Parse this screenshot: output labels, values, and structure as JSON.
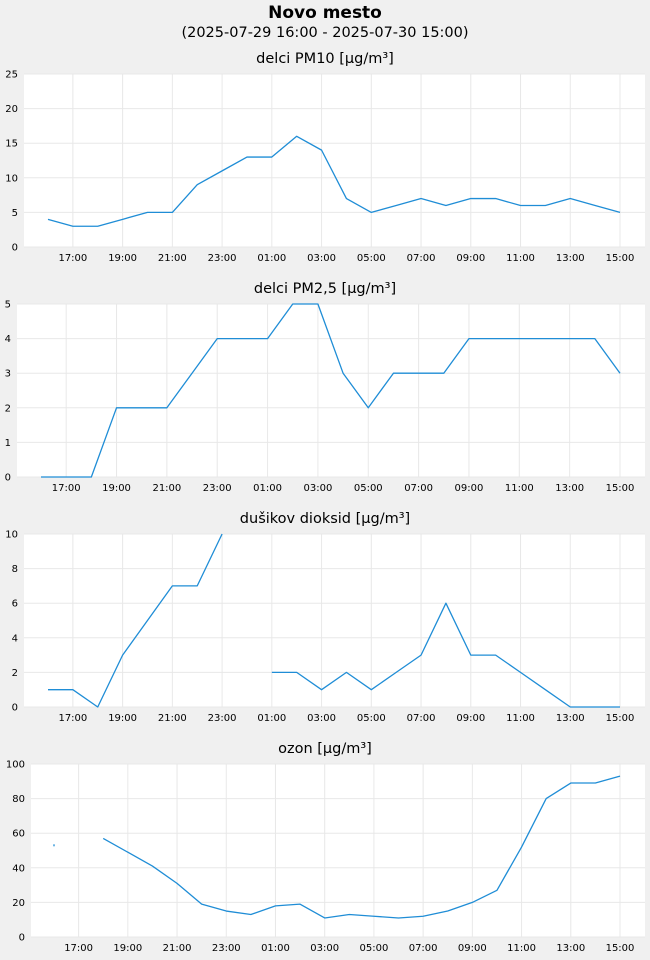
{
  "header": {
    "title": "Novo mesto",
    "period": "(2025-07-29 16:00 - 2025-07-30 15:00)"
  },
  "colors": {
    "line": "#1f8dd6",
    "plot_bg": "#ffffff",
    "page_bg": "#f0f0f0",
    "grid": "#e8e8e8"
  },
  "x_hours": [
    "16:00",
    "17:00",
    "18:00",
    "19:00",
    "20:00",
    "21:00",
    "22:00",
    "23:00",
    "00:00",
    "01:00",
    "02:00",
    "03:00",
    "04:00",
    "05:00",
    "06:00",
    "07:00",
    "08:00",
    "09:00",
    "10:00",
    "11:00",
    "12:00",
    "13:00",
    "14:00",
    "15:00"
  ],
  "chart_data": [
    {
      "type": "line",
      "title": "delci PM10 [µg/m³]",
      "ylim": [
        0,
        25
      ],
      "yticks": [
        0,
        5,
        10,
        15,
        20,
        25
      ],
      "xtick_labels": [
        "17:00",
        "19:00",
        "21:00",
        "23:00",
        "01:00",
        "03:00",
        "05:00",
        "07:00",
        "09:00",
        "11:00",
        "13:00",
        "15:00"
      ],
      "grid": true,
      "values": [
        4,
        3,
        3,
        4,
        5,
        5,
        9,
        11,
        13,
        13,
        16,
        14,
        7,
        5,
        6,
        7,
        6,
        7,
        7,
        6,
        6,
        7,
        6,
        5
      ]
    },
    {
      "type": "line",
      "title": "delci PM2,5 [µg/m³]",
      "ylim": [
        0,
        5
      ],
      "yticks": [
        0,
        1,
        2,
        3,
        4,
        5
      ],
      "xtick_labels": [
        "17:00",
        "19:00",
        "21:00",
        "23:00",
        "01:00",
        "03:00",
        "05:00",
        "07:00",
        "09:00",
        "11:00",
        "13:00",
        "15:00"
      ],
      "grid": true,
      "values": [
        0,
        0,
        0,
        2,
        2,
        2,
        3,
        4,
        4,
        4,
        5,
        5,
        3,
        2,
        3,
        3,
        3,
        4,
        4,
        4,
        4,
        4,
        4,
        3
      ]
    },
    {
      "type": "line",
      "title": "dušikov dioksid [µg/m³]",
      "ylim": [
        0,
        10
      ],
      "yticks": [
        0,
        2,
        4,
        6,
        8,
        10
      ],
      "xtick_labels": [
        "17:00",
        "19:00",
        "21:00",
        "23:00",
        "01:00",
        "03:00",
        "05:00",
        "07:00",
        "09:00",
        "11:00",
        "13:00",
        "15:00"
      ],
      "grid": true,
      "values": [
        1,
        1,
        0,
        3,
        5,
        7,
        7,
        10,
        null,
        2,
        2,
        1,
        2,
        1,
        2,
        3,
        6,
        3,
        3,
        2,
        1,
        0,
        0,
        0
      ]
    },
    {
      "type": "line",
      "title": "ozon [µg/m³]",
      "ylim": [
        0,
        100
      ],
      "yticks": [
        0,
        20,
        40,
        60,
        80,
        100
      ],
      "xtick_labels": [
        "17:00",
        "19:00",
        "21:00",
        "23:00",
        "01:00",
        "03:00",
        "05:00",
        "07:00",
        "09:00",
        "11:00",
        "13:00",
        "15:00"
      ],
      "grid": true,
      "values": [
        53,
        null,
        57,
        49,
        41,
        31,
        19,
        15,
        13,
        18,
        19,
        11,
        13,
        12,
        11,
        12,
        15,
        20,
        27,
        52,
        80,
        89,
        89,
        93
      ]
    }
  ]
}
